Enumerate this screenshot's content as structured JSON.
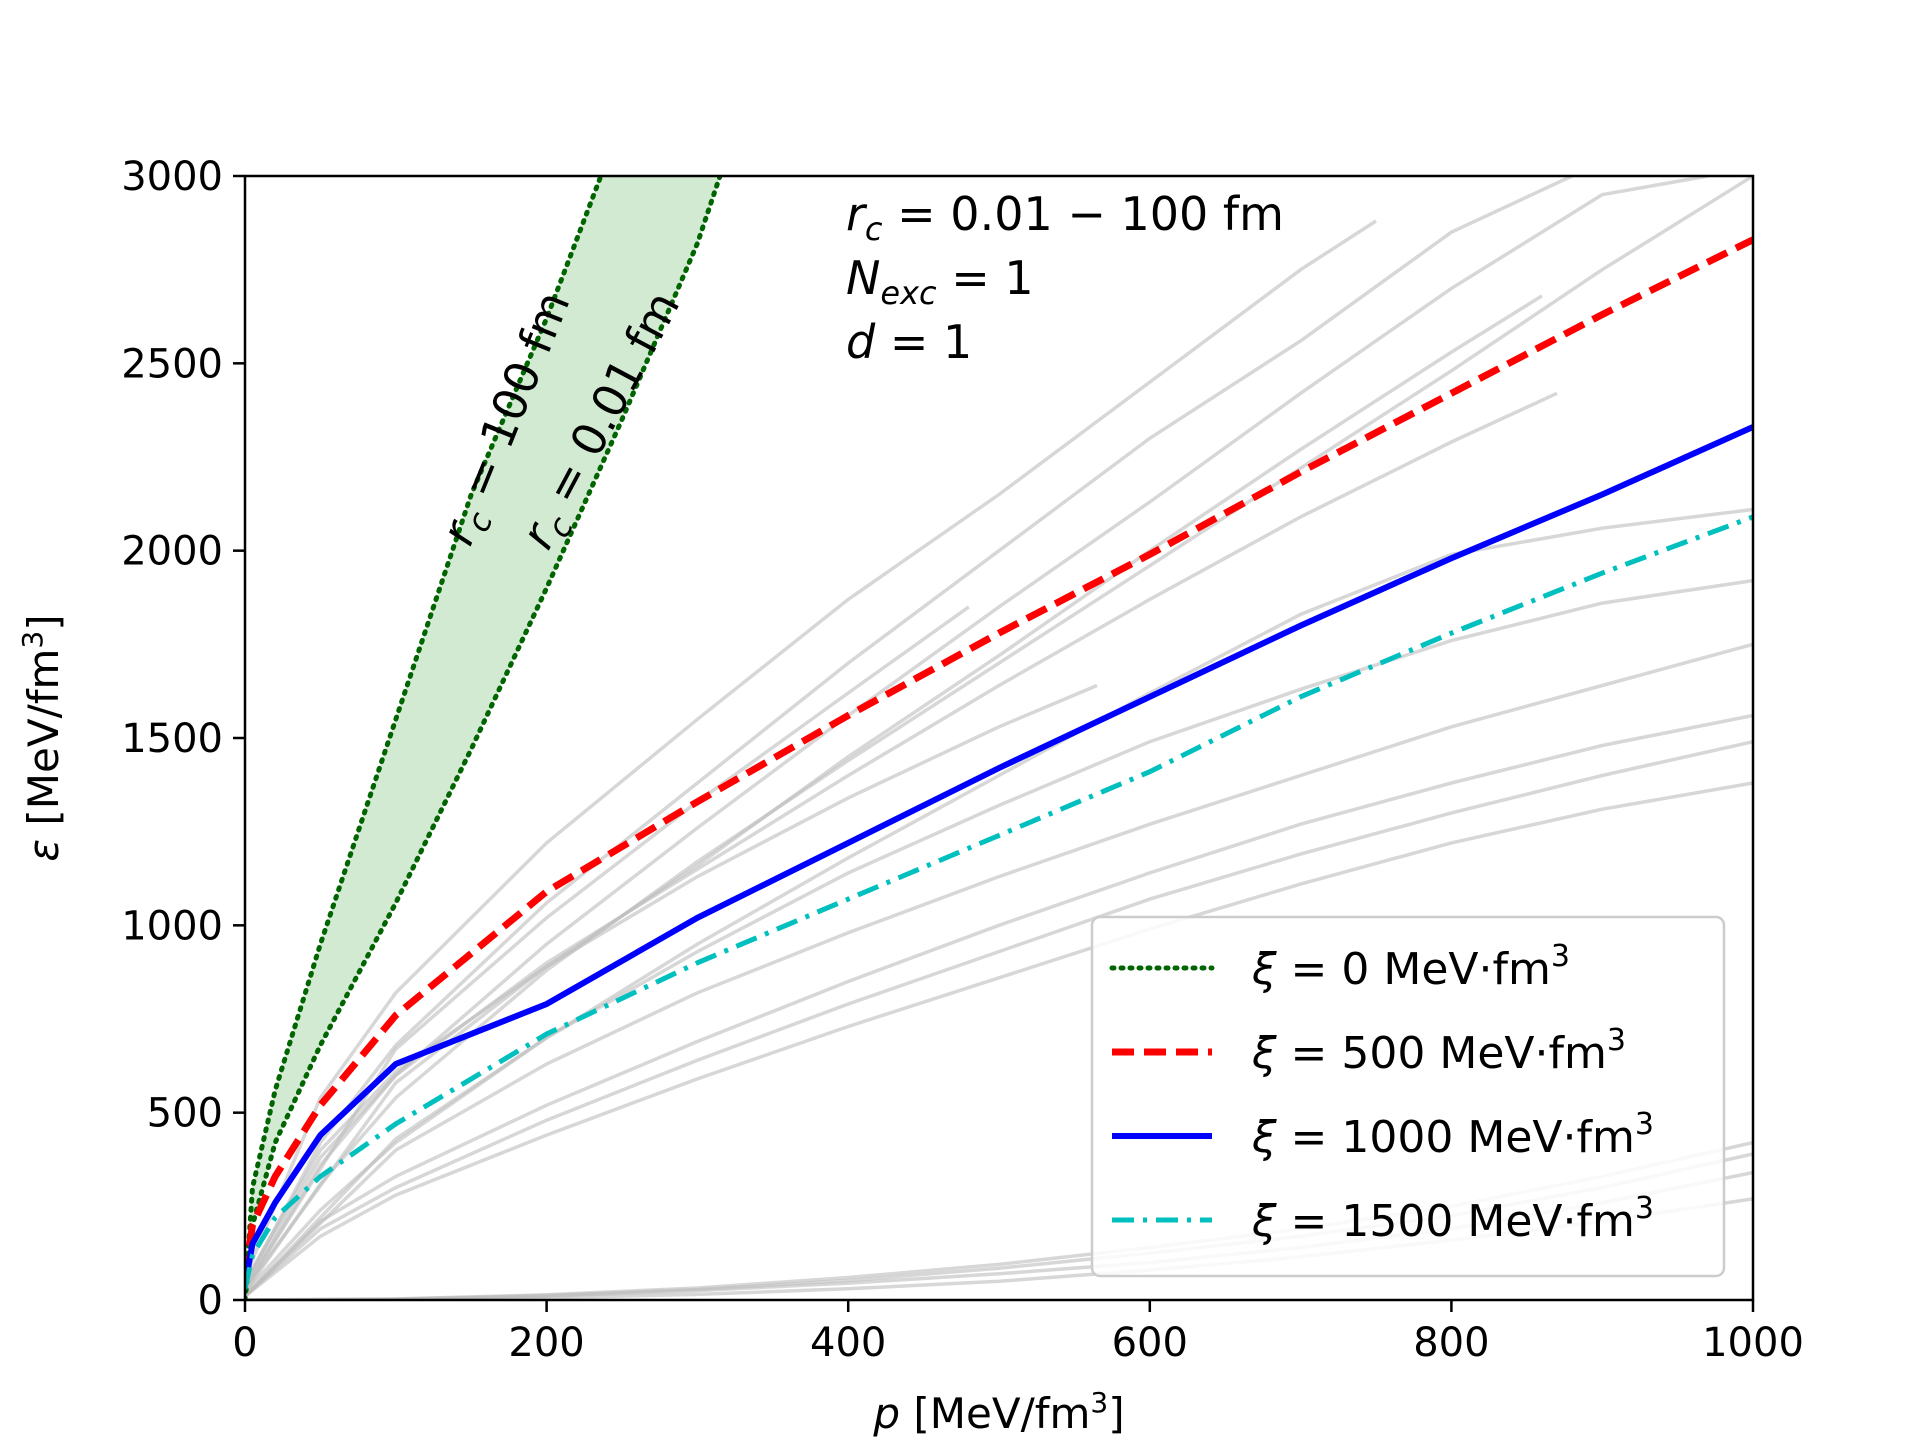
{
  "chart_data": {
    "type": "line",
    "title": "",
    "xlabel": {
      "symbol": "p",
      "unit_prefix": "[MeV/fm",
      "unit_sup": "3",
      "unit_suffix": "]"
    },
    "ylabel": {
      "symbol": "ε",
      "unit_prefix": "[MeV/fm",
      "unit_sup": "3",
      "unit_suffix": "]"
    },
    "xlim": [
      0,
      1000
    ],
    "ylim": [
      0,
      3000
    ],
    "xticks": [
      0,
      200,
      400,
      600,
      800,
      1000
    ],
    "yticks": [
      0,
      500,
      1000,
      1500,
      2000,
      2500,
      3000
    ],
    "grid": false,
    "legend_location": "lower-right",
    "annotations": {
      "rc_range": {
        "symbol": "r",
        "sub": "c",
        "text": " = 0.01 − 100 fm"
      },
      "nexc": {
        "symbol": "N",
        "sub": "exc",
        "text": " = 1"
      },
      "d": {
        "symbol": "d",
        "text": " = 1"
      },
      "rc_100": {
        "symbol": "r",
        "sub": "c",
        "text": " = 100 fm"
      },
      "rc_001": {
        "symbol": "r",
        "sub": "c",
        "text": " = 0.01 fm"
      }
    },
    "band": {
      "name": "xi = 0 band (rc = 0.01 – 100 fm)",
      "color": "#2ca02c",
      "upper": {
        "x": [
          0,
          5,
          20,
          50,
          100,
          150,
          200,
          236
        ],
        "y": [
          0,
          300,
          560,
          950,
          1550,
          2150,
          2620,
          3000
        ]
      },
      "lower": {
        "x": [
          0,
          5,
          20,
          50,
          100,
          150,
          200,
          250,
          300,
          315
        ],
        "y": [
          0,
          200,
          420,
          680,
          1060,
          1470,
          1900,
          2350,
          2820,
          3000
        ]
      }
    },
    "series": [
      {
        "name": "xi0",
        "legend": {
          "symbol": "ξ",
          "text": " = 0 MeV·fm",
          "sup": "3"
        },
        "color": "#006400",
        "dash": "2,7",
        "width": 5,
        "x": [
          0,
          5,
          20,
          50,
          100,
          150,
          200,
          236
        ],
        "y": [
          0,
          300,
          560,
          950,
          1550,
          2150,
          2620,
          3000
        ]
      },
      {
        "name": "xi500",
        "legend": {
          "symbol": "ξ",
          "text": " = 500 MeV·fm",
          "sup": "3"
        },
        "color": "#ff0000",
        "dash": "22,10",
        "width": 7,
        "x": [
          0,
          5,
          20,
          50,
          100,
          200,
          300,
          400,
          500,
          600,
          700,
          800,
          900,
          1000
        ],
        "y": [
          60,
          200,
          330,
          520,
          760,
          1090,
          1330,
          1560,
          1780,
          1990,
          2210,
          2420,
          2630,
          2830
        ]
      },
      {
        "name": "xi1000",
        "legend": {
          "symbol": "ξ",
          "text": " = 1000 MeV·fm",
          "sup": "3"
        },
        "color": "#0000ff",
        "dash": "",
        "width": 6,
        "x": [
          0,
          5,
          20,
          50,
          100,
          200,
          300,
          400,
          500,
          600,
          700,
          800,
          900,
          1000
        ],
        "y": [
          40,
          150,
          260,
          440,
          630,
          790,
          1020,
          1220,
          1420,
          1610,
          1800,
          1980,
          2150,
          2330
        ]
      },
      {
        "name": "xi1500",
        "legend": {
          "symbol": "ξ",
          "text": " = 1500 MeV·fm",
          "sup": "3"
        },
        "color": "#00bfbf",
        "dash": "22,9,4,9",
        "width": 5,
        "x": [
          0,
          5,
          20,
          50,
          100,
          200,
          300,
          400,
          500,
          600,
          700,
          800,
          900,
          1000
        ],
        "y": [
          30,
          120,
          220,
          330,
          470,
          710,
          900,
          1070,
          1240,
          1410,
          1610,
          1780,
          1940,
          2090
        ]
      }
    ],
    "background_curves": [
      {
        "x": [
          0,
          50,
          100,
          200,
          300,
          400,
          500,
          600,
          700,
          750
        ],
        "y": [
          60,
          540,
          820,
          1220,
          1550,
          1870,
          2150,
          2450,
          2750,
          2880
        ]
      },
      {
        "x": [
          0,
          50,
          100,
          200,
          300,
          400,
          500,
          600,
          700,
          800,
          880
        ],
        "y": [
          40,
          420,
          680,
          1060,
          1380,
          1700,
          2000,
          2300,
          2560,
          2850,
          3000
        ]
      },
      {
        "x": [
          0,
          50,
          100,
          200,
          300,
          400,
          500,
          600,
          700,
          800,
          900,
          970
        ],
        "y": [
          30,
          360,
          600,
          950,
          1260,
          1560,
          1850,
          2130,
          2420,
          2700,
          2950,
          3000
        ]
      },
      {
        "x": [
          0,
          50,
          100,
          200,
          300,
          400,
          500,
          600,
          700,
          800,
          900,
          1000
        ],
        "y": [
          20,
          310,
          540,
          880,
          1170,
          1440,
          1700,
          1960,
          2220,
          2480,
          2750,
          3000
        ]
      },
      {
        "x": [
          0,
          50,
          100,
          200,
          300,
          400,
          500,
          600,
          700,
          800,
          860
        ],
        "y": [
          50,
          400,
          610,
          890,
          1160,
          1450,
          1720,
          2000,
          2270,
          2530,
          2680
        ]
      },
      {
        "x": [
          0,
          50,
          100,
          200,
          300,
          400,
          500,
          600,
          700,
          800,
          870
        ],
        "y": [
          40,
          380,
          600,
          900,
          1150,
          1400,
          1640,
          1870,
          2090,
          2290,
          2420
        ]
      },
      {
        "x": [
          0,
          50,
          100,
          200,
          300,
          400,
          500,
          600,
          700,
          800,
          900,
          1000
        ],
        "y": [
          20,
          240,
          420,
          700,
          950,
          1180,
          1400,
          1620,
          1830,
          1990,
          2060,
          2110
        ]
      },
      {
        "x": [
          0,
          100,
          200,
          300,
          400,
          500,
          600,
          700,
          800,
          900,
          1000
        ],
        "y": [
          10,
          430,
          700,
          930,
          1140,
          1320,
          1490,
          1630,
          1760,
          1860,
          1920
        ]
      },
      {
        "x": [
          0,
          100,
          200,
          300,
          400,
          500,
          600,
          700,
          800,
          900,
          1000
        ],
        "y": [
          10,
          400,
          630,
          820,
          980,
          1130,
          1270,
          1400,
          1530,
          1640,
          1750
        ]
      },
      {
        "x": [
          0,
          50,
          100,
          200,
          300,
          400,
          500,
          600,
          700,
          800,
          900,
          1000
        ],
        "y": [
          10,
          210,
          330,
          520,
          690,
          850,
          1000,
          1140,
          1270,
          1380,
          1480,
          1560
        ]
      },
      {
        "x": [
          0,
          50,
          100,
          200,
          300,
          400,
          500,
          600,
          700,
          800,
          900,
          1000
        ],
        "y": [
          10,
          190,
          300,
          480,
          640,
          790,
          930,
          1070,
          1190,
          1300,
          1400,
          1490
        ]
      },
      {
        "x": [
          0,
          50,
          100,
          200,
          300,
          400,
          500,
          600,
          700,
          800,
          900,
          1000
        ],
        "y": [
          10,
          170,
          280,
          440,
          590,
          730,
          860,
          990,
          1110,
          1220,
          1310,
          1380
        ]
      },
      {
        "x": [
          0,
          100,
          200,
          300,
          400,
          480
        ],
        "y": [
          30,
          670,
          1020,
          1330,
          1620,
          1850
        ]
      },
      {
        "x": [
          0,
          100,
          200,
          300,
          400,
          500,
          565
        ],
        "y": [
          30,
          580,
          890,
          1130,
          1340,
          1530,
          1640
        ]
      },
      {
        "x": [
          0,
          100,
          200,
          300,
          400,
          500,
          600,
          700,
          800,
          900,
          1000
        ],
        "y": [
          0,
          2,
          10,
          25,
          45,
          70,
          100,
          140,
          190,
          260,
          340
        ]
      },
      {
        "x": [
          0,
          100,
          200,
          300,
          400,
          500,
          600,
          700,
          800,
          900,
          1000
        ],
        "y": [
          0,
          1,
          6,
          15,
          30,
          50,
          80,
          115,
          160,
          210,
          270
        ]
      },
      {
        "x": [
          0,
          100,
          200,
          300,
          400,
          500,
          600,
          700,
          800,
          900,
          1000
        ],
        "y": [
          0,
          3,
          14,
          32,
          60,
          95,
          140,
          190,
          250,
          330,
          420
        ]
      },
      {
        "x": [
          0,
          100,
          200,
          300,
          400,
          500,
          600,
          700,
          800,
          900,
          1000
        ],
        "y": [
          0,
          2,
          12,
          28,
          52,
          85,
          125,
          170,
          225,
          300,
          390
        ]
      }
    ]
  }
}
